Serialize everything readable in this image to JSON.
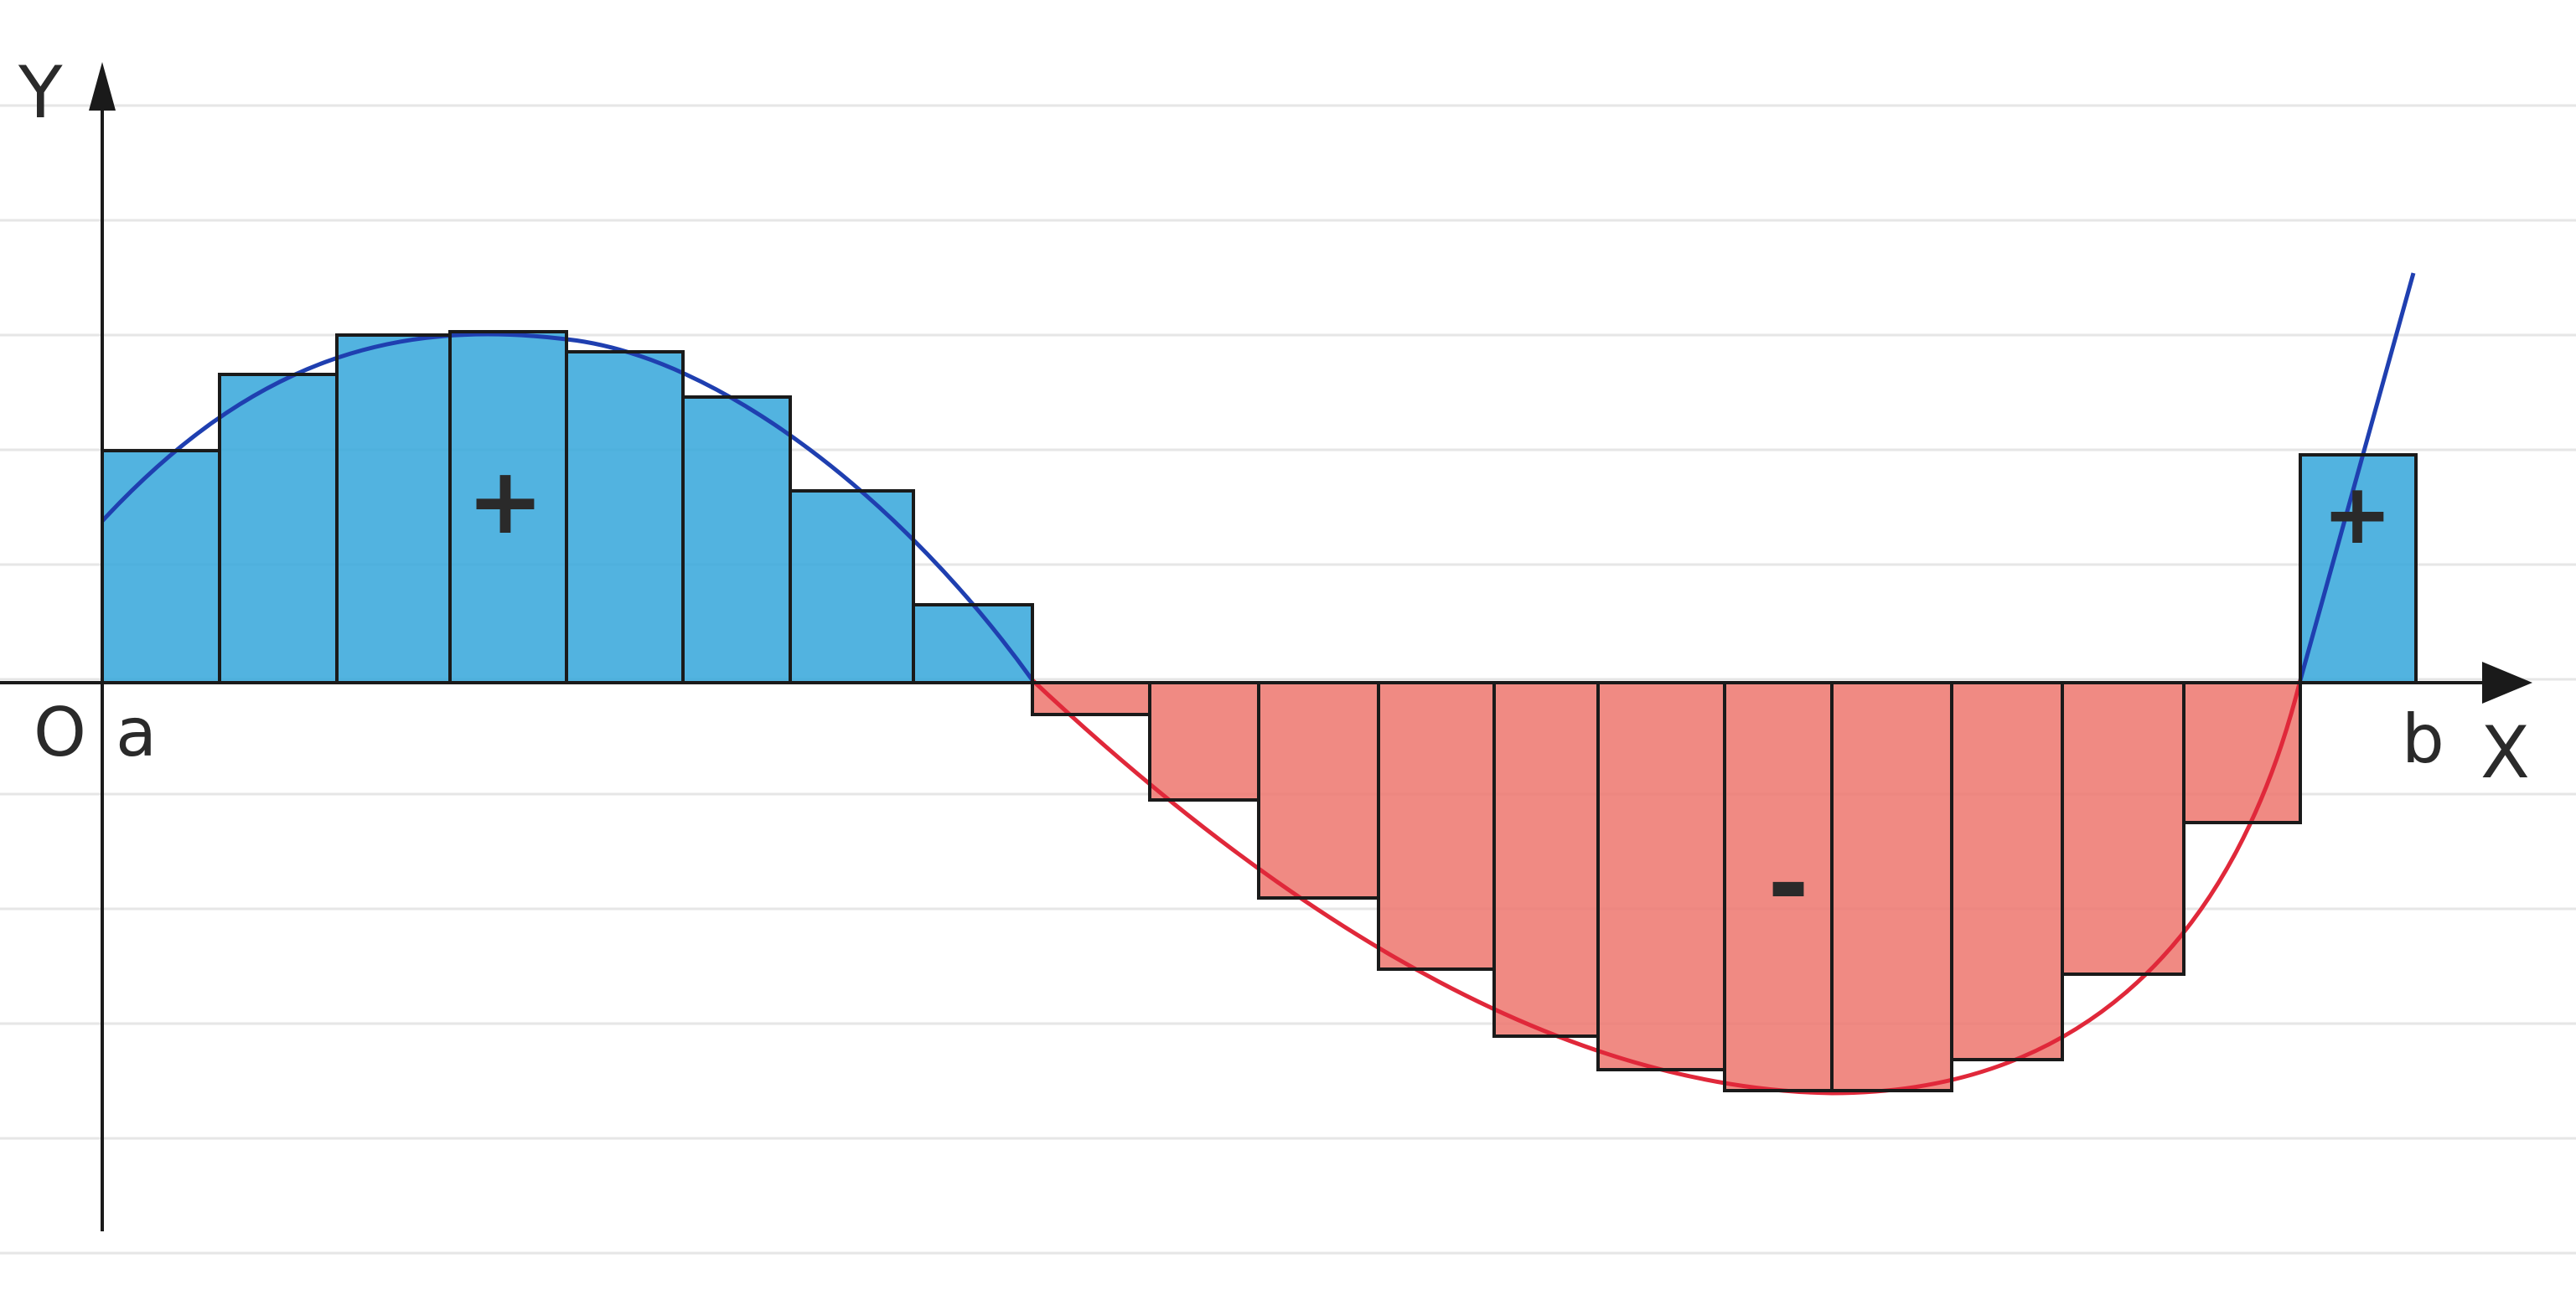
{
  "labels": {
    "y_axis": "Y",
    "x_axis": "X",
    "origin": "O",
    "left_bound": "a",
    "right_bound": "b",
    "positive_left": "+",
    "negative": "-",
    "positive_right": "+"
  },
  "colors": {
    "positive_fill": "#3aa8dc",
    "negative_fill": "#ee7a72",
    "positive_curve": "#1f3fb0",
    "negative_curve": "#e0283a",
    "outline": "#1a1a1a",
    "ruled_lines": "#e6e6e6"
  }
}
